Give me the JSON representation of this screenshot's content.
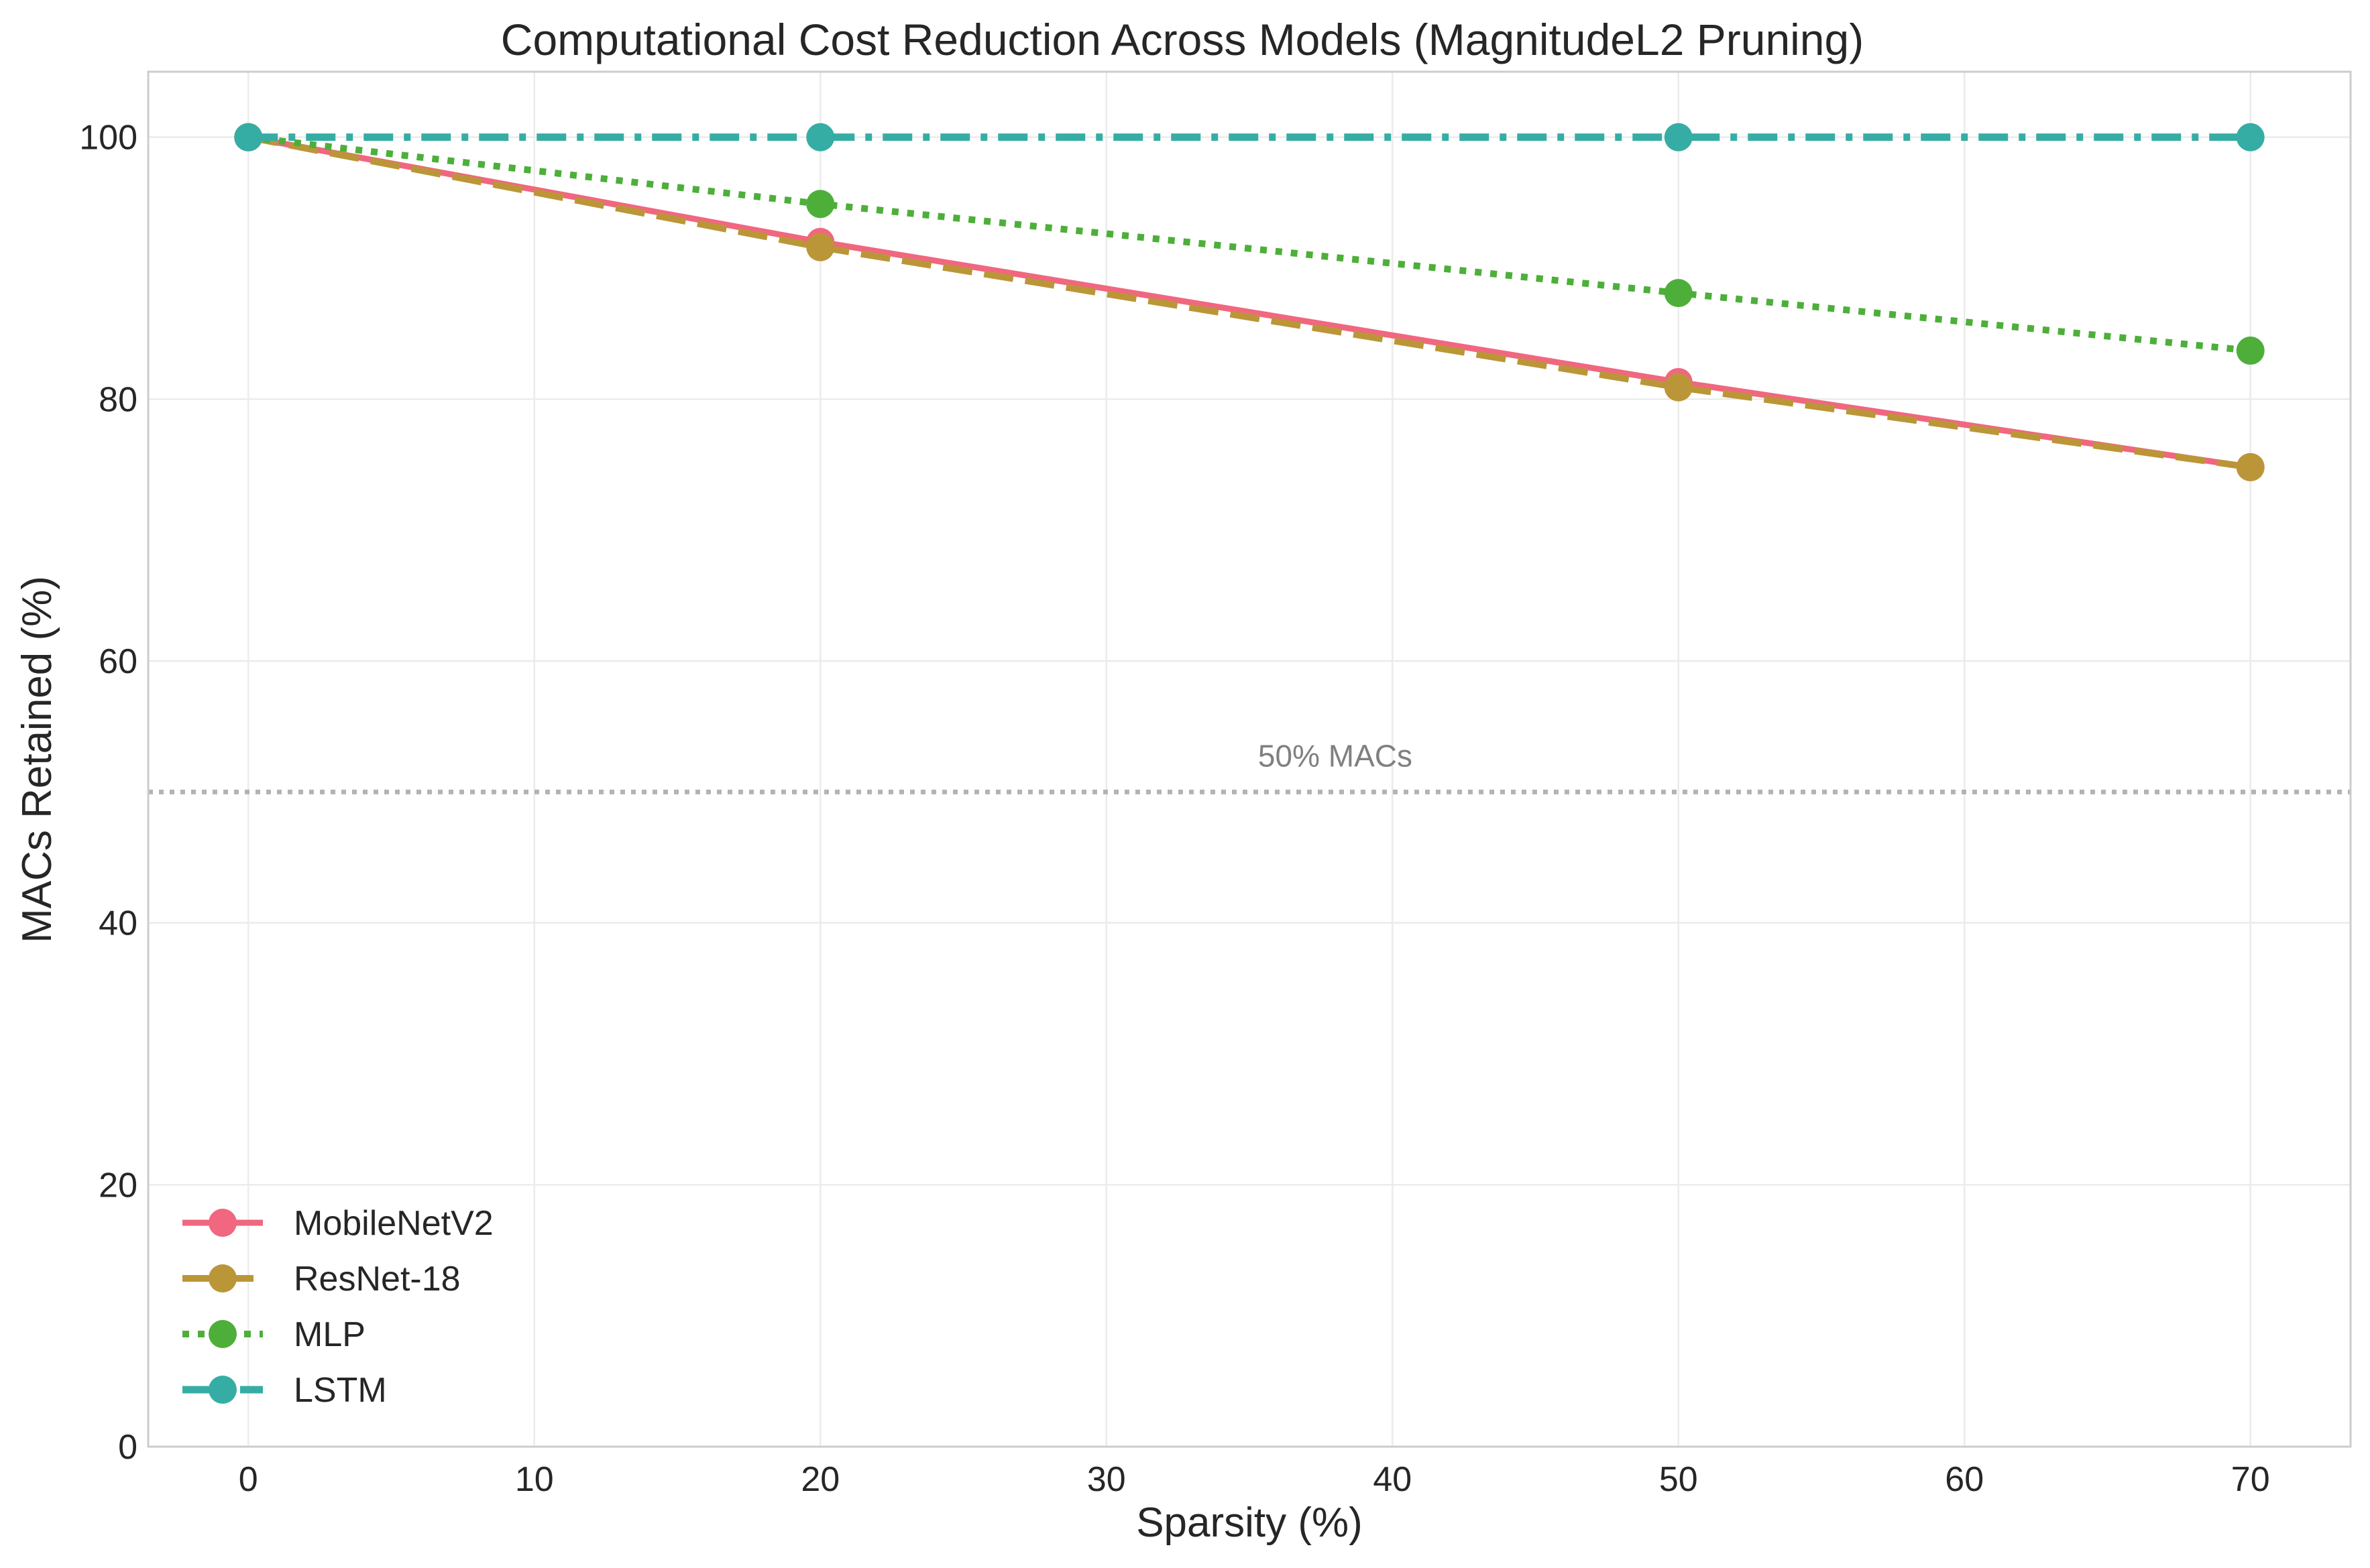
{
  "chart_data": {
    "type": "line",
    "title": "Computational Cost Reduction Across Models (MagnitudeL2 Pruning)",
    "xlabel": "Sparsity (%)",
    "ylabel": "MACs Retained (%)",
    "x": [
      0,
      20,
      50,
      70
    ],
    "xlim": [
      -3.5,
      73.5
    ],
    "ylim": [
      0,
      105
    ],
    "xticks": [
      0,
      10,
      20,
      30,
      40,
      50,
      60,
      70
    ],
    "yticks": [
      0,
      20,
      40,
      60,
      80,
      100
    ],
    "grid": true,
    "legend_position": "lower-left",
    "series": [
      {
        "name": "MobileNetV2",
        "values": [
          100,
          92.0,
          81.3,
          74.8
        ],
        "color": "#f0677f",
        "line_style": "solid",
        "marker": "circle"
      },
      {
        "name": "ResNet-18",
        "values": [
          100,
          91.6,
          80.9,
          74.8
        ],
        "color": "#bb9638",
        "line_style": "dashed",
        "marker": "circle"
      },
      {
        "name": "MLP",
        "values": [
          100,
          94.9,
          88.1,
          83.7
        ],
        "color": "#4daf3a",
        "line_style": "dotted",
        "marker": "circle"
      },
      {
        "name": "LSTM",
        "values": [
          100,
          100,
          100,
          100
        ],
        "color": "#36ada4",
        "line_style": "dashdot",
        "marker": "circle"
      }
    ],
    "reference_line": {
      "y": 50,
      "label": "50% MACs",
      "color": "#b3b3b3"
    }
  }
}
